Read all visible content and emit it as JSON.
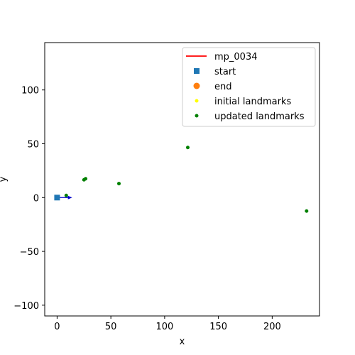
{
  "chart_data": {
    "type": "scatter",
    "title": "",
    "xlabel": "x",
    "ylabel": "y",
    "xlim": [
      -11.5,
      244
    ],
    "ylim": [
      -110,
      144
    ],
    "xticks": [
      0,
      50,
      100,
      150,
      200
    ],
    "yticks": [
      -100,
      -50,
      0,
      50,
      100
    ],
    "grid": false,
    "legend_position": "top-right",
    "colors": {
      "path": "#ff0000",
      "start": "#1f77b4",
      "end": "#ff7f0e",
      "initial_landmarks": "#ffff00",
      "updated_landmarks": "#008000",
      "heading_arrow": "#0000cc"
    },
    "series": [
      {
        "name": "mp_0034",
        "kind": "line",
        "points": []
      },
      {
        "name": "start",
        "kind": "marker-square",
        "points": [
          {
            "x": 0,
            "y": 0
          }
        ]
      },
      {
        "name": "end",
        "kind": "marker-circle",
        "points": []
      },
      {
        "name": "initial landmarks",
        "kind": "dot",
        "points": []
      },
      {
        "name": "updated landmarks",
        "kind": "dot",
        "points": [
          {
            "x": 8.5,
            "y": 2
          },
          {
            "x": 25,
            "y": 16.5
          },
          {
            "x": 26.5,
            "y": 17.5
          },
          {
            "x": 57.5,
            "y": 13
          },
          {
            "x": 121.5,
            "y": 46.5
          },
          {
            "x": 232,
            "y": -12.5
          }
        ]
      }
    ],
    "heading_arrow": {
      "x": 0,
      "y": 0,
      "dx": 14,
      "dy": 0
    }
  }
}
